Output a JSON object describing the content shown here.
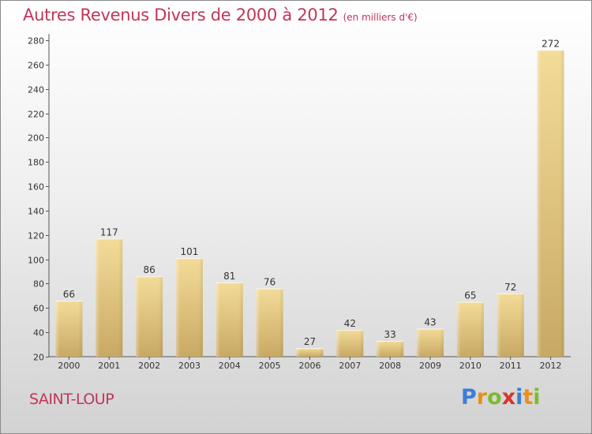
{
  "header": {
    "title": "Autres Revenus Divers de 2000 à 2012",
    "subtitle": "(en milliers d'€)"
  },
  "footer": {
    "location": "SAINT-LOUP",
    "logo_text": "Proxiti",
    "logo_colors": [
      "#3b7dd8",
      "#e8901c",
      "#7dbb2e",
      "#d8332d",
      "#3b7dd8",
      "#e8901c",
      "#7dbb2e"
    ]
  },
  "chart_data": {
    "type": "bar",
    "title": "Autres Revenus Divers de 2000 à 2012",
    "subtitle": "(en milliers d'€)",
    "categories": [
      "2000",
      "2001",
      "2002",
      "2003",
      "2004",
      "2005",
      "2006",
      "2007",
      "2008",
      "2009",
      "2010",
      "2011",
      "2012"
    ],
    "values": [
      66,
      117,
      86,
      101,
      81,
      76,
      27,
      42,
      33,
      43,
      65,
      72,
      272
    ],
    "ylim": [
      20,
      280
    ],
    "yticks": [
      20,
      40,
      60,
      80,
      100,
      120,
      140,
      160,
      180,
      200,
      220,
      240,
      260,
      280
    ],
    "grid": false,
    "bar_color": "#e2c47a",
    "text_color": "#c2355a"
  }
}
